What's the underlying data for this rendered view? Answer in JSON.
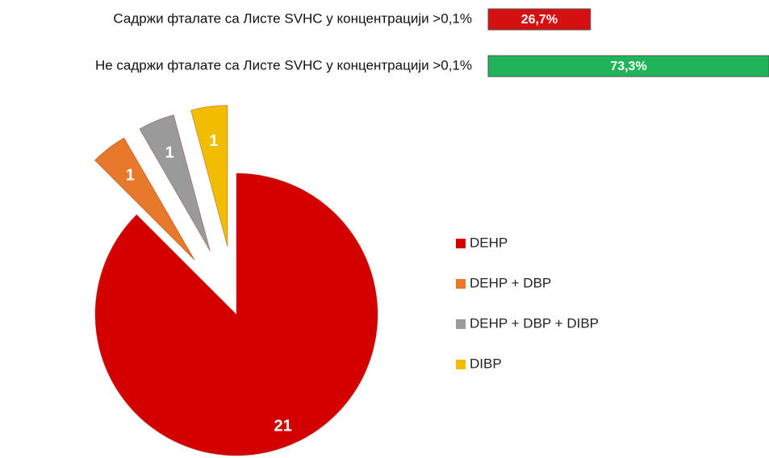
{
  "chart_data": [
    {
      "type": "hbar",
      "categories": [
        "Садржи фталате са Листе SVHC у концентрацији  >0,1%",
        "Не садржи фталате са Листе SVHC у концентрацији  >0,1%"
      ],
      "values": [
        26.7,
        73.3
      ],
      "value_labels": [
        "26,7%",
        "73,3%"
      ],
      "colors": [
        "#d41010",
        "#1fb45a"
      ]
    },
    {
      "type": "pie",
      "categories": [
        "DEHP",
        "DEHP + DBP",
        "DEHP + DBP + DIBP",
        "DIBP"
      ],
      "values": [
        21,
        1,
        1,
        1
      ],
      "colors": [
        "#d40000",
        "#e8782a",
        "#9a9a9a",
        "#f2bc00"
      ],
      "legend": "right"
    }
  ]
}
